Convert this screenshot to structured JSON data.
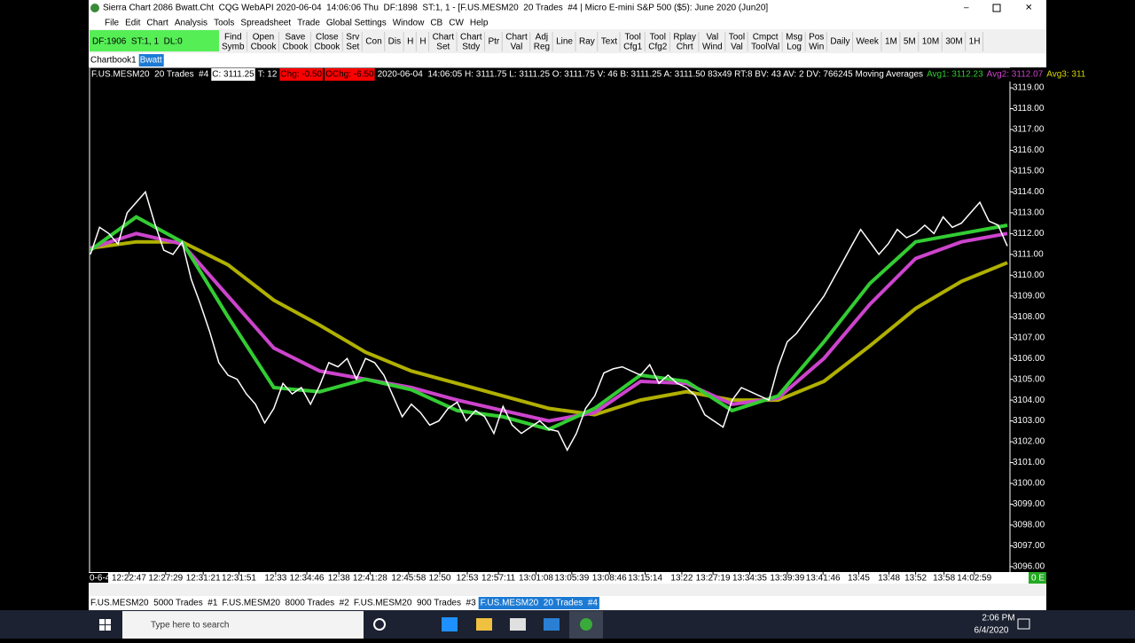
{
  "window": {
    "title": "Sierra Chart 2086 Bwatt.Cht  CQG WebAPI 2020-06-04  14:06:06 Thu  DF:1898  ST:1, 1 - [F.US.MESM20  20 Trades  #4 | Micro E-mini S&P 500 ($5): June 2020 (Jun20]",
    "menu": [
      "File",
      "Edit",
      "Chart",
      "Analysis",
      "Tools",
      "Spreadsheet",
      "Trade",
      "Global Settings",
      "Window",
      "CB",
      "CW",
      "Help"
    ]
  },
  "toolbar": {
    "status": "DF:1906  ST:1, 1  DL:0",
    "buttons": [
      [
        "Find",
        "Symb"
      ],
      [
        "Open",
        "Cbook"
      ],
      [
        "Save",
        "Cbook"
      ],
      [
        "Close",
        "Cbook"
      ],
      [
        "Srv",
        "Set"
      ],
      [
        "Con"
      ],
      [
        "Dis"
      ],
      [
        "H"
      ],
      [
        "H"
      ],
      [
        "Chart",
        "Set"
      ],
      [
        "Chart",
        "Stdy"
      ],
      [
        "Ptr"
      ],
      [
        "Chart",
        "Val"
      ],
      [
        "Adj",
        "Reg"
      ],
      [
        "Line"
      ],
      [
        "Ray"
      ],
      [
        "Text"
      ],
      [
        "Tool",
        "Cfg1"
      ],
      [
        "Tool",
        "Cfg2"
      ],
      [
        "Rplay",
        "Chrt"
      ],
      [
        "Val",
        "Wind"
      ],
      [
        "Tool",
        "Val"
      ],
      [
        "Cmpct",
        "ToolVal"
      ],
      [
        "Msg",
        "Log"
      ],
      [
        "Pos",
        "Win"
      ],
      [
        "Daily"
      ],
      [
        "Week"
      ],
      [
        "1M"
      ],
      [
        "5M"
      ],
      [
        "10M"
      ],
      [
        "30M"
      ],
      [
        "1H"
      ]
    ]
  },
  "chartbook_tabs": [
    "Chartbook1",
    "Bwatt"
  ],
  "chart_header": [
    {
      "text": "F.US.MESM20  20 Trades  #4",
      "color": "#ffffff"
    },
    {
      "text": "C: 3111.25",
      "color": "#000000",
      "bg": "#ffffff"
    },
    {
      "text": "T: 12",
      "color": "#ffffff"
    },
    {
      "text": "Chg: -0.50",
      "color": "#000000",
      "bg": "#ff0000"
    },
    {
      "text": "OChg: -6.50",
      "color": "#000000",
      "bg": "#ff0000"
    },
    {
      "text": "2020-06-04  14:06:05 H: 3111.75 L: 3111.25 O: 3111.75 V: 46 B: 3111.25 A: 3111.50 83x49 RT:8 BV: 43 AV: 2 DV: 766245 Moving Averages",
      "color": "#ffffff"
    },
    {
      "text": "Avg1: 3112.23",
      "color": "#33cc33"
    },
    {
      "text": "Avg2: 3112.07",
      "color": "#cc44cc"
    },
    {
      "text": "Avg3: 311",
      "color": "#d8d800"
    }
  ],
  "chart": {
    "type": "line",
    "xlim": [
      0,
      100
    ],
    "ylim": [
      3095.74,
      3119.3
    ],
    "yticks": [
      {
        "value": 3096,
        "label": "3096.00"
      },
      {
        "value": 3097,
        "label": "3097.00"
      },
      {
        "value": 3098,
        "label": "3098.00"
      },
      {
        "value": 3099,
        "label": "3099.00"
      },
      {
        "value": 3100,
        "label": "3100.00"
      },
      {
        "value": 3101,
        "label": "3101.00"
      },
      {
        "value": 3102,
        "label": "3102.00"
      },
      {
        "value": 3103,
        "label": "3103.00"
      },
      {
        "value": 3104,
        "label": "3104.00"
      },
      {
        "value": 3105,
        "label": "3105.00"
      },
      {
        "value": 3106,
        "label": "3106.00"
      },
      {
        "value": 3107,
        "label": "3107.00"
      },
      {
        "value": 3108,
        "label": "3108.00"
      },
      {
        "value": 3109,
        "label": "3109.00"
      },
      {
        "value": 3110,
        "label": "3110.00"
      },
      {
        "value": 3111,
        "label": "3111.00"
      },
      {
        "value": 3112,
        "label": "3112.00"
      },
      {
        "value": 3113,
        "label": "3113.00"
      },
      {
        "value": 3114,
        "label": "3114.00"
      },
      {
        "value": 3115,
        "label": "3115.00"
      },
      {
        "value": 3116,
        "label": "3116.00"
      },
      {
        "value": 3117,
        "label": "3117.00"
      },
      {
        "value": 3118,
        "label": "3118.00"
      },
      {
        "value": 3119,
        "label": "3119.00"
      }
    ],
    "xticks": [
      {
        "value": 4.2,
        "label": "12:22:47"
      },
      {
        "value": 8.2,
        "label": "12:27:29"
      },
      {
        "value": 12.3,
        "label": "12:31:21"
      },
      {
        "value": 16.2,
        "label": "12:31:51"
      },
      {
        "value": 20.2,
        "label": "12:33"
      },
      {
        "value": 23.6,
        "label": "12:34:46"
      },
      {
        "value": 27.1,
        "label": "12:38"
      },
      {
        "value": 30.5,
        "label": "12:41:28"
      },
      {
        "value": 34.7,
        "label": "12:45:58"
      },
      {
        "value": 38.1,
        "label": "12:50"
      },
      {
        "value": 41.1,
        "label": "12:53"
      },
      {
        "value": 44.5,
        "label": "12:57:11"
      },
      {
        "value": 48.6,
        "label": "13:01:08"
      },
      {
        "value": 52.5,
        "label": "13:05:39"
      },
      {
        "value": 56.6,
        "label": "13:08:46"
      },
      {
        "value": 60.5,
        "label": "13:15:14"
      },
      {
        "value": 64.5,
        "label": "13:22"
      },
      {
        "value": 67.9,
        "label": "13:27:19"
      },
      {
        "value": 71.9,
        "label": "13:34:35"
      },
      {
        "value": 76,
        "label": "13:39:39"
      },
      {
        "value": 79.9,
        "label": "13:41:46"
      },
      {
        "value": 83.8,
        "label": "13:45"
      },
      {
        "value": 87.1,
        "label": "13:48"
      },
      {
        "value": 90,
        "label": "13:52"
      },
      {
        "value": 93.1,
        "label": "13:58"
      },
      {
        "value": 96.4,
        "label": "14:02:59"
      }
    ],
    "first_label": "0-6-4",
    "status": "0 E",
    "price": {
      "color": "#ffffff",
      "x": [
        0,
        1,
        2,
        3,
        4,
        5,
        6,
        7,
        8,
        9,
        10,
        11,
        12,
        13,
        14,
        15,
        16,
        17,
        18,
        19,
        20,
        21,
        22,
        23,
        24,
        25,
        26,
        27,
        28,
        29,
        30,
        31,
        32,
        33,
        34,
        35,
        36,
        37,
        38,
        39,
        40,
        41,
        42,
        43,
        44,
        45,
        46,
        47,
        48,
        49,
        50,
        51,
        52,
        53,
        54,
        55,
        56,
        57,
        58,
        59,
        60,
        61,
        62,
        63,
        64,
        65,
        66,
        67,
        68,
        69,
        70,
        71,
        72,
        73,
        74,
        75,
        76,
        77,
        78,
        79,
        80,
        81,
        82,
        83,
        84,
        85,
        86,
        87,
        88,
        89,
        90,
        91,
        92,
        93,
        94,
        95,
        96,
        97,
        98,
        99,
        100
      ],
      "values": [
        3111.0,
        3112.3,
        3112.0,
        3111.5,
        3113.0,
        3113.5,
        3114.0,
        3112.5,
        3111.2,
        3111.0,
        3111.6,
        3109.8,
        3108.6,
        3107.3,
        3105.8,
        3105.2,
        3105.0,
        3104.3,
        3103.8,
        3102.9,
        3103.6,
        3104.8,
        3104.3,
        3104.6,
        3103.8,
        3104.7,
        3105.8,
        3105.6,
        3106.0,
        3105.0,
        3106.0,
        3105.8,
        3105.2,
        3104.2,
        3103.2,
        3103.8,
        3103.4,
        3102.8,
        3103.0,
        3103.6,
        3103.9,
        3103.0,
        3103.5,
        3103.2,
        3102.4,
        3103.7,
        3102.8,
        3102.4,
        3102.7,
        3103.0,
        3102.6,
        3102.5,
        3101.6,
        3102.4,
        3103.6,
        3104.2,
        3105.3,
        3105.5,
        3105.6,
        3105.4,
        3105.2,
        3105.7,
        3104.8,
        3105.2,
        3104.8,
        3104.6,
        3104.2,
        3103.3,
        3103.0,
        3102.7,
        3104.0,
        3104.6,
        3104.4,
        3104.2,
        3104.0,
        3105.6,
        3106.8,
        3107.2,
        3107.8,
        3108.4,
        3109.0,
        3109.8,
        3110.6,
        3111.4,
        3112.2,
        3111.6,
        3111.0,
        3111.5,
        3112.2,
        3111.8,
        3112.0,
        3112.4,
        3112.0,
        3112.8,
        3112.3,
        3112.5,
        3113.0,
        3113.5,
        3112.6,
        3112.4,
        3111.4
      ]
    },
    "averages": {
      "x": [
        0,
        5,
        10,
        15,
        20,
        25,
        30,
        35,
        40,
        45,
        50,
        55,
        60,
        65,
        70,
        75,
        80,
        85,
        90,
        95,
        100
      ],
      "series": [
        {
          "color": "#33cc33",
          "values": [
            3111.2,
            3112.8,
            3111.6,
            3108.0,
            3104.6,
            3104.4,
            3105.0,
            3104.5,
            3103.5,
            3103.2,
            3102.6,
            3103.6,
            3105.2,
            3104.9,
            3103.5,
            3104.2,
            3106.8,
            3109.6,
            3111.6,
            3112.0,
            3112.4
          ]
        },
        {
          "color": "#cc44cc",
          "values": [
            3111.3,
            3112.0,
            3111.5,
            3109.0,
            3106.5,
            3105.4,
            3105.0,
            3104.6,
            3104.0,
            3103.5,
            3103.0,
            3103.4,
            3104.9,
            3104.8,
            3103.8,
            3104.1,
            3106.0,
            3108.6,
            3110.8,
            3111.6,
            3112.0
          ]
        },
        {
          "color": "#b0b000",
          "values": [
            3111.3,
            3111.6,
            3111.6,
            3110.5,
            3108.8,
            3107.6,
            3106.3,
            3105.4,
            3104.8,
            3104.2,
            3103.6,
            3103.3,
            3104.0,
            3104.4,
            3104.0,
            3104.0,
            3104.9,
            3106.6,
            3108.4,
            3109.7,
            3110.6
          ]
        }
      ]
    }
  },
  "bottom_tabs": [
    "F.US.MESM20  5000 Trades  #1",
    "F.US.MESM20  8000 Trades  #2",
    "F.US.MESM20  900 Trades  #3",
    "F.US.MESM20  20 Trades  #4"
  ],
  "taskbar": {
    "search": "Type here to search",
    "time": "2:06 PM",
    "date": "6/4/2020"
  }
}
